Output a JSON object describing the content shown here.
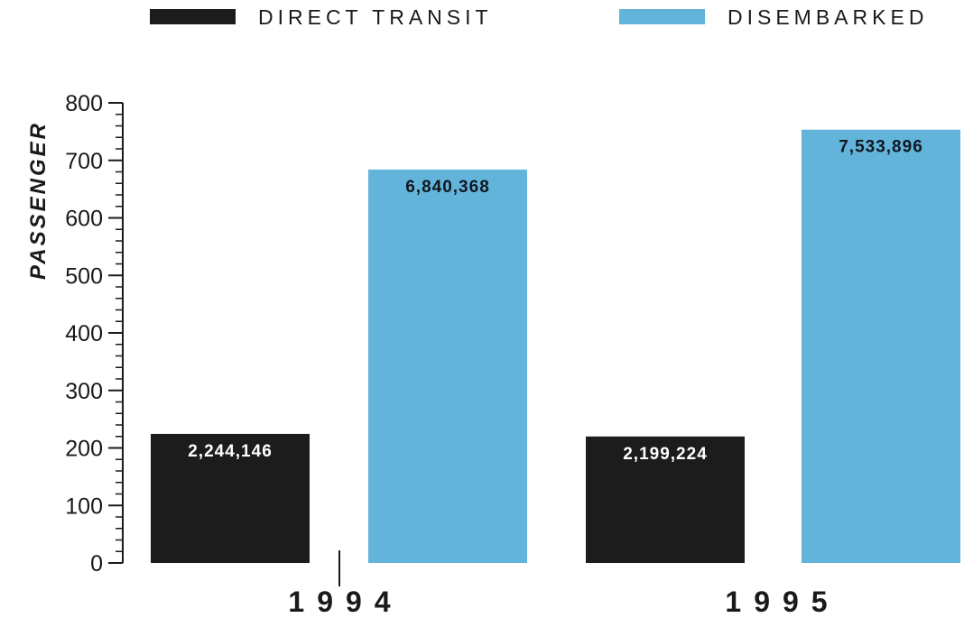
{
  "chart_data": {
    "type": "bar",
    "categories": [
      "1994",
      "1995"
    ],
    "ylabel": "PASSENGER",
    "ylim": [
      0,
      800
    ],
    "yticks": [
      0,
      100,
      200,
      300,
      400,
      500,
      600,
      700,
      800
    ],
    "legend_position": "top",
    "grid": false,
    "series": [
      {
        "name": "DIRECT TRANSIT",
        "color": "#1c1c1c",
        "values": [
          224.4146,
          219.9224
        ],
        "labels": [
          "2,244,146",
          "2,199,224"
        ],
        "label_color": "#ffffff"
      },
      {
        "name": "DISEMBARKED",
        "color": "#62b4db",
        "values": [
          684.0368,
          753.3896
        ],
        "labels": [
          "6,840,368",
          "7,533,896"
        ],
        "label_color": "#101820"
      }
    ]
  }
}
